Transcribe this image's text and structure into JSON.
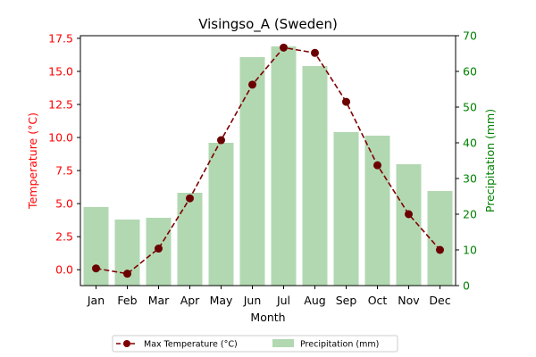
{
  "chart_data": {
    "type": "bar+line",
    "title": "Visingso_A (Sweden)",
    "xlabel": "Month",
    "ylabel_left": "Temperature (°C)",
    "ylabel_right": "Precipitation (mm)",
    "categories": [
      "Jan",
      "Feb",
      "Mar",
      "Apr",
      "May",
      "Jun",
      "Jul",
      "Aug",
      "Sep",
      "Oct",
      "Nov",
      "Dec"
    ],
    "ylim_left": [
      -1.2,
      17.7
    ],
    "ylim_right": [
      0,
      70
    ],
    "yticks_left": [
      "0.0",
      "2.5",
      "5.0",
      "7.5",
      "10.0",
      "12.5",
      "15.0",
      "17.5"
    ],
    "yticks_left_values": [
      0,
      2.5,
      5,
      7.5,
      10,
      12.5,
      15,
      17.5
    ],
    "yticks_right": [
      "0",
      "10",
      "20",
      "30",
      "40",
      "50",
      "60",
      "70"
    ],
    "yticks_right_values": [
      0,
      10,
      20,
      30,
      40,
      50,
      60,
      70
    ],
    "grid": false,
    "legend_placement": "bottom-center",
    "series": [
      {
        "name": "Max Temperature (°C)",
        "type": "line",
        "axis": "left",
        "color": "#7f0000",
        "values": [
          0.1,
          -0.3,
          1.6,
          5.4,
          9.8,
          14.0,
          16.8,
          16.4,
          12.7,
          7.9,
          4.2,
          1.5
        ]
      },
      {
        "name": "Precipitation (mm)",
        "type": "bar",
        "axis": "right",
        "color": "#b2d8b2",
        "values": [
          22,
          18.5,
          19,
          26,
          40,
          64,
          67,
          61.5,
          43,
          42,
          34,
          26.5
        ]
      }
    ],
    "colors": {
      "left_axis": "#ff0000",
      "right_axis": "#008000"
    }
  }
}
